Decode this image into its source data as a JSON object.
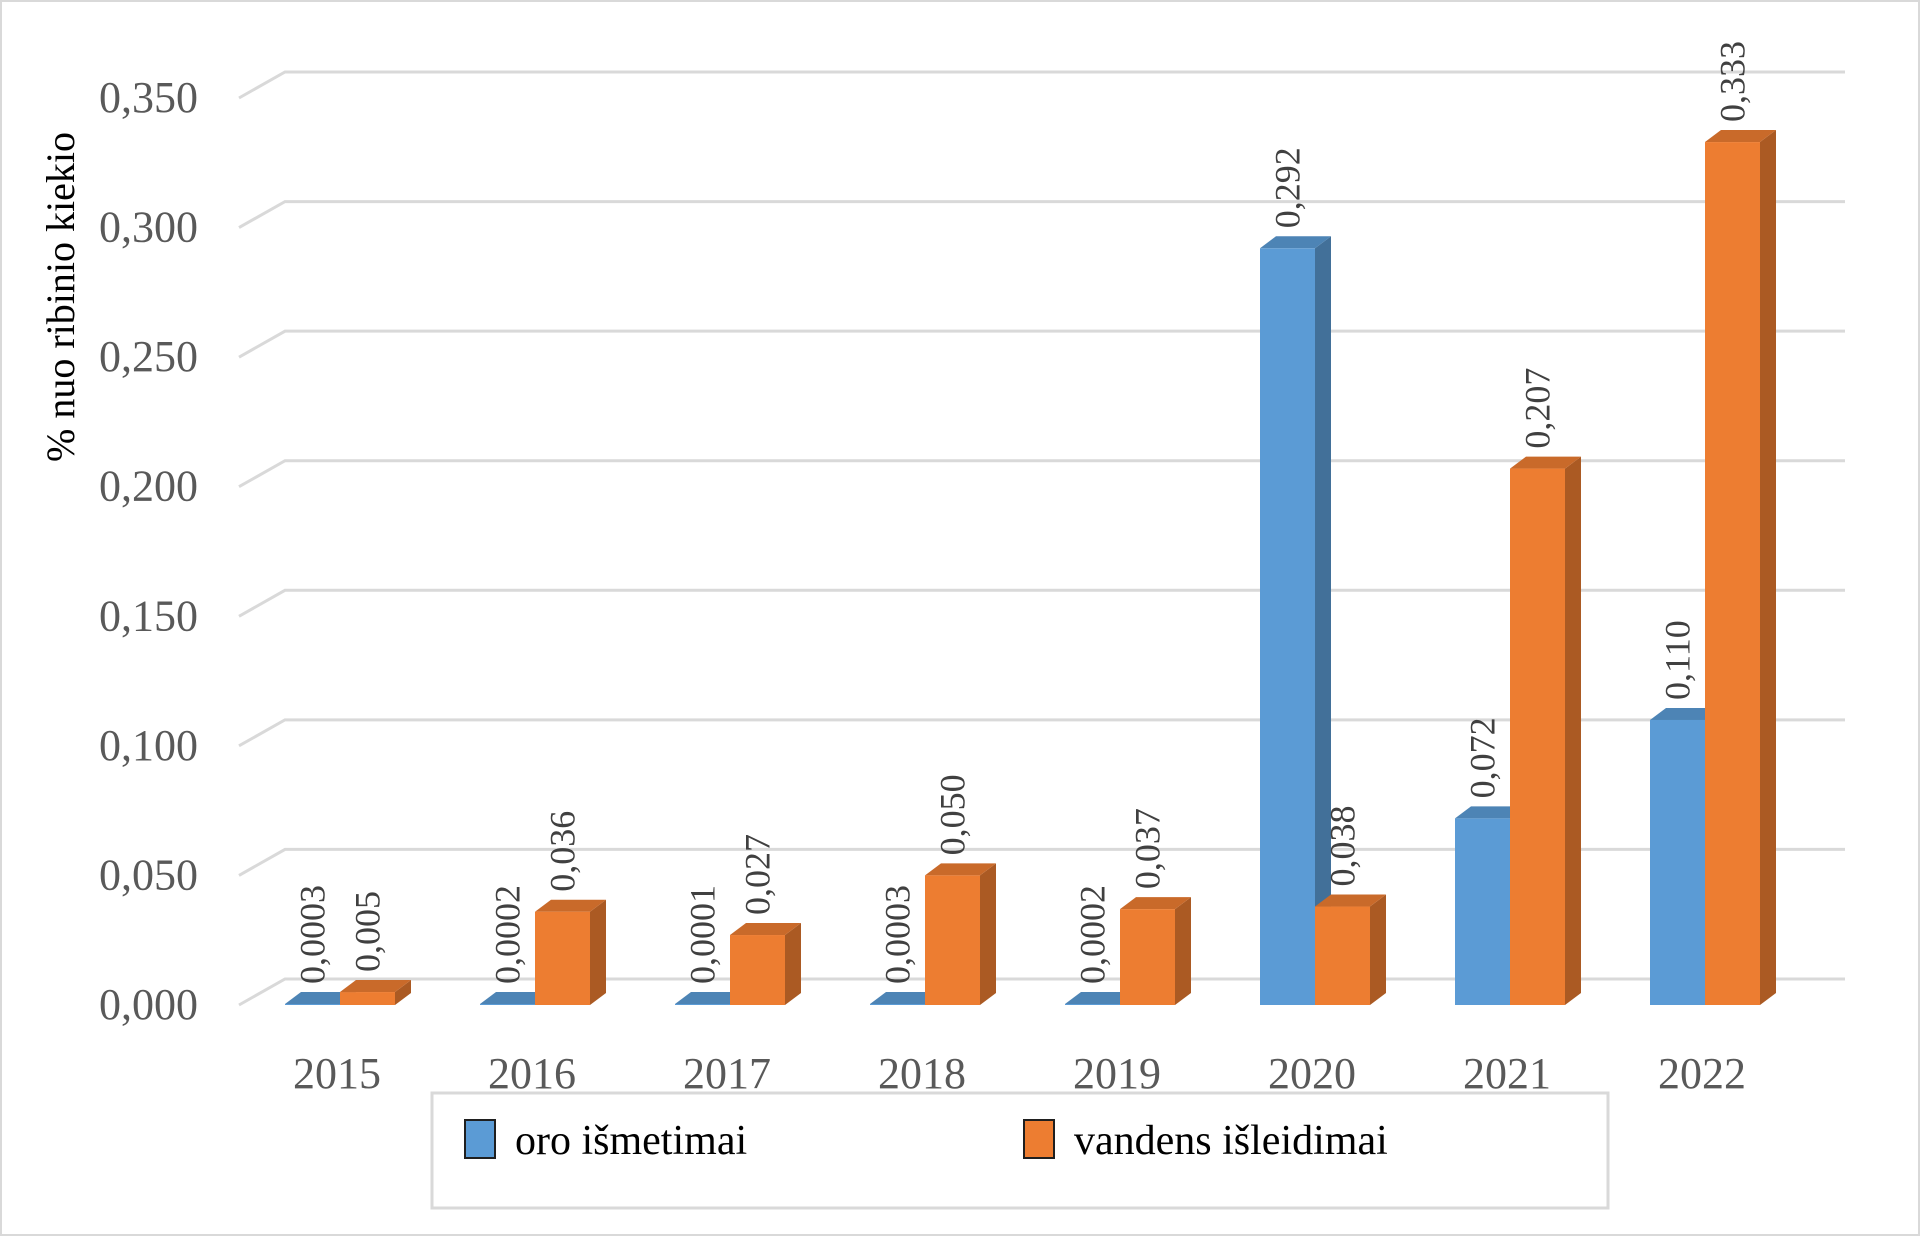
{
  "chart_data": {
    "type": "bar",
    "ylabel": "% nuo ribinio kiekio",
    "ylim": [
      0,
      0.35
    ],
    "yticks": [
      "0,000",
      "0,050",
      "0,100",
      "0,150",
      "0,200",
      "0,250",
      "0,300",
      "0,350"
    ],
    "categories": [
      "2015",
      "2016",
      "2017",
      "2018",
      "2019",
      "2020",
      "2021",
      "2022"
    ],
    "grid": true,
    "legend": "bottom",
    "series": [
      {
        "name": "oro išmetimai",
        "color": "#5b9bd5",
        "values": [
          0.0003,
          0.0002,
          0.0001,
          0.0003,
          0.0002,
          0.292,
          0.072,
          0.11
        ],
        "labels": [
          "0,0003",
          "0,0002",
          "0,0001",
          "0,0003",
          "0,0002",
          "0,292",
          "0,072",
          "0,110"
        ]
      },
      {
        "name": "vandens išleidimai",
        "color": "#ed7d31",
        "values": [
          0.005,
          0.036,
          0.027,
          0.05,
          0.037,
          0.038,
          0.207,
          0.333
        ],
        "labels": [
          "0,005",
          "0,036",
          "0,027",
          "0,050",
          "0,037",
          "0,038",
          "0,207",
          "0,333"
        ]
      }
    ]
  }
}
